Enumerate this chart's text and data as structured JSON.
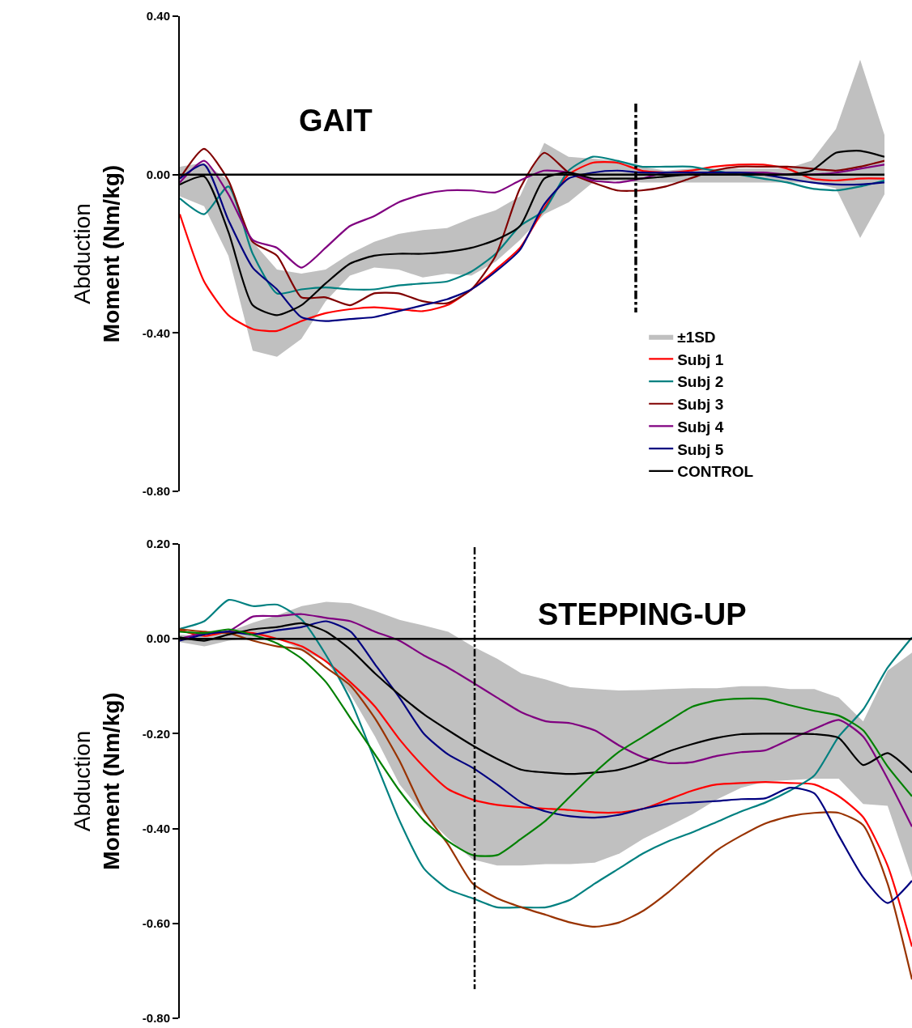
{
  "chart_data": [
    {
      "type": "line",
      "title": "GAIT",
      "ylabel": "Abduction\nMoment (Nm/kg)",
      "categories": [
        null,
        null,
        null,
        null,
        null,
        null,
        null,
        null,
        null,
        null,
        null,
        null,
        null,
        null,
        null,
        null,
        null,
        null,
        null,
        null,
        null,
        null,
        null,
        null,
        null,
        null,
        null,
        null,
        null,
        null
      ],
      "ylim": [
        -0.8,
        0.4
      ],
      "yticks": [
        {
          "value": 0.4,
          "label": "0.40"
        },
        {
          "value": 0,
          "label": "0.00"
        },
        {
          "value": -0.4,
          "label": "-0.40"
        },
        {
          "value": -0.8,
          "label": "-0.80"
        }
      ],
      "tick_labels": "y",
      "legend": "bottom right",
      "marker": "none",
      "annotations": [
        "±1SD"
      ],
      "ref_lines": [
        {
          "axis": "y",
          "value": 0,
          "color": "#000000",
          "line_style": "solid"
        }
      ],
      "series": [
        {
          "name": "Subj 1",
          "color": "#ff0000",
          "values": [
            -0.1,
            -0.27,
            -0.355,
            -0.39,
            -0.395,
            -0.37,
            -0.35,
            -0.34,
            -0.335,
            -0.34,
            -0.345,
            -0.33,
            -0.29,
            -0.24,
            -0.185,
            -0.085,
            0.0,
            0.03,
            0.03,
            0.01,
            0.005,
            0.01,
            0.02,
            0.025,
            0.025,
            0.015,
            -0.01,
            -0.015,
            -0.01,
            -0.01
          ]
        },
        {
          "name": "Subj 2",
          "color": "#008080",
          "values": [
            -0.06,
            -0.1,
            -0.03,
            -0.2,
            -0.3,
            -0.29,
            -0.285,
            -0.29,
            -0.29,
            -0.28,
            -0.275,
            -0.27,
            -0.245,
            -0.2,
            -0.13,
            -0.09,
            0.01,
            0.045,
            0.035,
            0.02,
            0.02,
            0.02,
            0.01,
            0.0,
            -0.01,
            -0.02,
            -0.035,
            -0.04,
            -0.03,
            -0.015
          ]
        },
        {
          "name": "Subj 3",
          "color": "#800000",
          "values": [
            -0.01,
            0.065,
            -0.015,
            -0.17,
            -0.205,
            -0.31,
            -0.31,
            -0.33,
            -0.3,
            -0.3,
            -0.32,
            -0.325,
            -0.29,
            -0.205,
            -0.035,
            0.055,
            0.005,
            -0.02,
            -0.04,
            -0.04,
            -0.03,
            -0.01,
            0.01,
            0.02,
            0.02,
            0.02,
            0.015,
            0.01,
            0.02,
            0.035
          ]
        },
        {
          "name": "Subj 4",
          "color": "#800080",
          "values": [
            -0.02,
            0.035,
            -0.05,
            -0.165,
            -0.185,
            -0.235,
            -0.185,
            -0.13,
            -0.105,
            -0.07,
            -0.05,
            -0.04,
            -0.04,
            -0.045,
            -0.015,
            0.01,
            0.005,
            -0.015,
            -0.02,
            -0.01,
            0.005,
            0.005,
            0.005,
            0.005,
            0.005,
            0.0,
            0.0,
            0.005,
            0.015,
            0.025
          ]
        },
        {
          "name": "Subj 5",
          "color": "#000080",
          "values": [
            -0.01,
            0.025,
            -0.115,
            -0.235,
            -0.29,
            -0.36,
            -0.37,
            -0.365,
            -0.36,
            -0.345,
            -0.33,
            -0.315,
            -0.29,
            -0.245,
            -0.19,
            -0.075,
            -0.01,
            0.005,
            0.01,
            0.005,
            0.005,
            0.005,
            0.005,
            0.005,
            0.0,
            -0.01,
            -0.02,
            -0.025,
            -0.025,
            -0.02
          ]
        },
        {
          "name": "CONTROL",
          "color": "#000000",
          "values": [
            -0.025,
            -0.005,
            -0.145,
            -0.33,
            -0.355,
            -0.33,
            -0.275,
            -0.225,
            -0.205,
            -0.2,
            -0.2,
            -0.195,
            -0.185,
            -0.165,
            -0.13,
            -0.01,
            0.005,
            -0.01,
            -0.01,
            -0.01,
            -0.005,
            0.0,
            0.0,
            0.0,
            0.0,
            0.0,
            0.01,
            0.055,
            0.06,
            0.045
          ],
          "upper": [
            0.02,
            0.03,
            -0.015,
            -0.17,
            -0.24,
            -0.25,
            -0.24,
            -0.2,
            -0.17,
            -0.15,
            -0.14,
            -0.135,
            -0.11,
            -0.09,
            -0.055,
            0.08,
            0.045,
            0.04,
            0.035,
            0.02,
            0.01,
            0.015,
            0.015,
            0.015,
            0.015,
            0.015,
            0.035,
            0.115,
            0.29,
            0.1
          ],
          "lower": [
            -0.055,
            -0.08,
            -0.205,
            -0.445,
            -0.46,
            -0.415,
            -0.32,
            -0.255,
            -0.235,
            -0.24,
            -0.26,
            -0.25,
            -0.255,
            -0.22,
            -0.165,
            -0.1,
            -0.07,
            -0.02,
            -0.015,
            -0.02,
            -0.02,
            -0.02,
            -0.02,
            -0.02,
            -0.02,
            -0.02,
            -0.02,
            -0.035,
            -0.16,
            -0.05
          ]
        }
      ]
    },
    {
      "type": "line",
      "title": "STEPPING-UP",
      "ylabel": "Abduction\nMoment (Nm/kg)",
      "categories": [
        null,
        null,
        null,
        null,
        null,
        null,
        null,
        null,
        null,
        null,
        null,
        null,
        null,
        null,
        null,
        null,
        null,
        null,
        null,
        null,
        null,
        null,
        null,
        null,
        null,
        null,
        null,
        null,
        null,
        null,
        null
      ],
      "ylim": [
        -0.8,
        0.2
      ],
      "yticks": [
        {
          "value": 0.2,
          "label": "0.20"
        },
        {
          "value": 0,
          "label": "0.00"
        },
        {
          "value": -0.2,
          "label": "-0.20"
        },
        {
          "value": -0.4,
          "label": "-0.40"
        },
        {
          "value": -0.6,
          "label": "-0.60"
        },
        {
          "value": -0.8,
          "label": "-0.80"
        }
      ],
      "tick_labels": "y",
      "marker": "none",
      "ref_lines": [
        {
          "axis": "y",
          "value": 0,
          "color": "#000000",
          "line_style": "solid"
        }
      ],
      "series": [
        {
          "color": "#ff0000",
          "values": [
            0.018,
            0.006,
            0.015,
            0.012,
            0.0,
            -0.016,
            -0.048,
            -0.092,
            -0.143,
            -0.212,
            -0.27,
            -0.317,
            -0.339,
            -0.35,
            -0.355,
            -0.358,
            -0.361,
            -0.366,
            -0.366,
            -0.358,
            -0.339,
            -0.32,
            -0.307,
            -0.304,
            -0.302,
            -0.304,
            -0.307,
            -0.332,
            -0.376,
            -0.478,
            -0.649
          ]
        },
        {
          "color": "#008080",
          "values": [
            0.021,
            0.037,
            0.082,
            0.069,
            0.072,
            0.04,
            -0.035,
            -0.13,
            -0.257,
            -0.383,
            -0.484,
            -0.528,
            -0.547,
            -0.566,
            -0.566,
            -0.566,
            -0.55,
            -0.516,
            -0.484,
            -0.452,
            -0.427,
            -0.408,
            -0.386,
            -0.364,
            -0.345,
            -0.32,
            -0.288,
            -0.206,
            -0.149,
            -0.061,
            0.003
          ]
        },
        {
          "color": "#993300",
          "values": [
            0.02,
            0.015,
            0.012,
            -0.004,
            -0.016,
            -0.023,
            -0.061,
            -0.099,
            -0.168,
            -0.257,
            -0.364,
            -0.434,
            -0.516,
            -0.547,
            -0.566,
            -0.582,
            -0.598,
            -0.607,
            -0.598,
            -0.573,
            -0.535,
            -0.49,
            -0.446,
            -0.415,
            -0.389,
            -0.374,
            -0.367,
            -0.367,
            -0.393,
            -0.516,
            -0.718
          ]
        },
        {
          "color": "#800080",
          "values": [
            0.0,
            0.012,
            0.016,
            0.047,
            0.048,
            0.052,
            0.044,
            0.037,
            0.015,
            -0.004,
            -0.035,
            -0.061,
            -0.092,
            -0.124,
            -0.155,
            -0.174,
            -0.178,
            -0.193,
            -0.225,
            -0.25,
            -0.262,
            -0.26,
            -0.247,
            -0.239,
            -0.235,
            -0.212,
            -0.19,
            -0.171,
            -0.206,
            -0.295,
            -0.396
          ]
        },
        {
          "color": "#000080",
          "values": [
            -0.004,
            0.009,
            0.015,
            0.009,
            0.018,
            0.025,
            0.037,
            0.015,
            -0.054,
            -0.124,
            -0.2,
            -0.244,
            -0.272,
            -0.307,
            -0.345,
            -0.364,
            -0.374,
            -0.377,
            -0.371,
            -0.358,
            -0.348,
            -0.345,
            -0.342,
            -0.338,
            -0.336,
            -0.314,
            -0.326,
            -0.415,
            -0.503,
            -0.557,
            -0.51
          ]
        },
        {
          "color": "#000000",
          "values": [
            0.003,
            -0.004,
            0.009,
            0.02,
            0.025,
            0.033,
            0.015,
            -0.023,
            -0.073,
            -0.118,
            -0.159,
            -0.193,
            -0.225,
            -0.253,
            -0.276,
            -0.282,
            -0.285,
            -0.282,
            -0.276,
            -0.26,
            -0.238,
            -0.222,
            -0.209,
            -0.201,
            -0.2,
            -0.2,
            -0.201,
            -0.209,
            -0.266,
            -0.241,
            -0.282
          ],
          "upper": [
            0.009,
            0.006,
            0.015,
            0.034,
            0.05,
            0.069,
            0.078,
            0.075,
            0.059,
            0.04,
            0.028,
            0.015,
            -0.016,
            -0.042,
            -0.073,
            -0.086,
            -0.102,
            -0.106,
            -0.109,
            -0.108,
            -0.106,
            -0.104,
            -0.104,
            -0.1,
            -0.1,
            -0.106,
            -0.106,
            -0.124,
            -0.174,
            -0.067,
            -0.029
          ],
          "lower": [
            -0.007,
            -0.016,
            -0.004,
            0.003,
            0.0,
            -0.023,
            -0.048,
            -0.118,
            -0.206,
            -0.307,
            -0.37,
            -0.421,
            -0.465,
            -0.478,
            -0.478,
            -0.475,
            -0.475,
            -0.472,
            -0.453,
            -0.421,
            -0.396,
            -0.37,
            -0.339,
            -0.314,
            -0.301,
            -0.298,
            -0.295,
            -0.295,
            -0.348,
            -0.352,
            -0.503
          ]
        },
        {
          "color": "#008000",
          "values": [
            0.015,
            0.012,
            0.02,
            0.008,
            -0.01,
            -0.042,
            -0.092,
            -0.168,
            -0.244,
            -0.32,
            -0.383,
            -0.427,
            -0.456,
            -0.456,
            -0.421,
            -0.383,
            -0.332,
            -0.282,
            -0.238,
            -0.206,
            -0.174,
            -0.143,
            -0.13,
            -0.126,
            -0.127,
            -0.14,
            -0.152,
            -0.162,
            -0.193,
            -0.269,
            -0.332
          ]
        }
      ]
    }
  ]
}
